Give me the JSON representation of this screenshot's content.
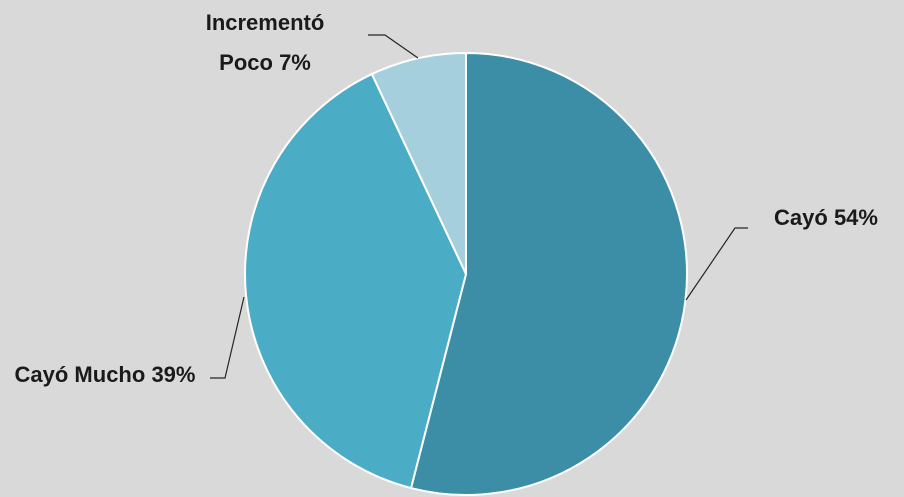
{
  "chart_data": {
    "type": "pie",
    "categories": [
      "Cayó",
      "Cayó Mucho",
      "Incrementó Poco"
    ],
    "values": [
      54,
      39,
      7
    ],
    "value_labels": [
      "54%",
      "39%",
      "7%"
    ],
    "colors": [
      "#3b8ea5",
      "#4bacc6",
      "#a5cfdc"
    ]
  }
}
